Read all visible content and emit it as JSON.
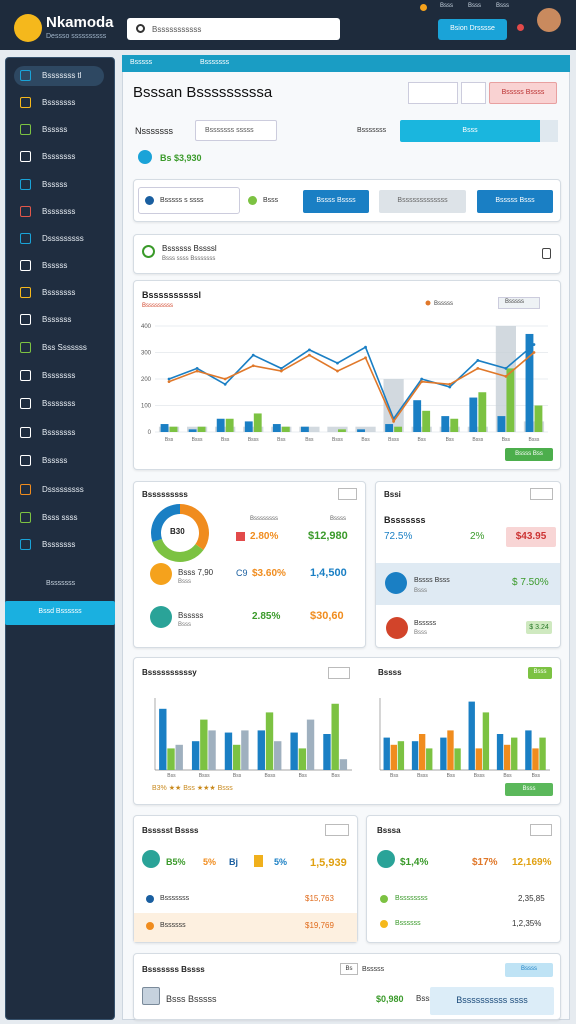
{
  "header": {
    "logo": "Nkamoda",
    "tagline": "Dessso ssssssssss",
    "search": "Bsssssssssss",
    "links": [
      "Bsss",
      "Bsss",
      "Bsss"
    ],
    "button": "Bsion Drsssse"
  },
  "sidebar": {
    "items": [
      "Bsssssss tl",
      "Bsssssss",
      "Bsssss",
      "Bsssssss",
      "Bsssss",
      "Bsssssss",
      "Dsssssssss",
      "Bsssss",
      "Bsssssss",
      "Bssssss",
      "Bss Sssssss",
      "Bsssssss",
      "Bsssssss",
      "Bsssssss",
      "Bsssss",
      "Dsssssssss",
      "Bsss ssss",
      "Bsssssss"
    ],
    "footer_label": "Bsssssss",
    "footer_button": "Bssd Bssssss"
  },
  "breadcrumb": [
    "Bsssss",
    "Bsssssss"
  ],
  "title": "Bsssan Bsssssssssa",
  "title_action": "Bsssss Bssss",
  "filter": {
    "label": "Nsssssss",
    "input": "Bsssssss sssss",
    "label2": "Bsssssss",
    "select": "Bsss"
  },
  "stat": "Bs $3,930",
  "toolbar": {
    "field": "Bsssss s ssss",
    "toggle": "Bsss",
    "buttons": [
      "Bssss Bssss",
      "Bsssssssssssss",
      "Bsssss Bsss"
    ]
  },
  "notice": {
    "title": "Bssssss Bssssl",
    "text": "Bsss ssss Bsssssss"
  },
  "main_chart": {
    "type": "bar",
    "title": "Bssssssssssl",
    "subtitle": "Bsssssssss",
    "filter": "Bsssss",
    "badge": "Bssss Bss",
    "categories": [
      "Bss",
      "Bsss",
      "Bss",
      "Bsss",
      "Bss",
      "Bss",
      "Bsss",
      "Bss",
      "Bsss",
      "Bss",
      "Bss",
      "Bsss",
      "Bss",
      "Bsss"
    ],
    "ylim": [
      0,
      400
    ],
    "yticks": [
      0,
      100,
      200,
      300,
      400
    ],
    "grid": true,
    "series": [
      {
        "kind": "backdrop",
        "color": "#c7cfd7",
        "values": [
          20,
          20,
          20,
          20,
          20,
          20,
          20,
          20,
          200,
          20,
          20,
          20,
          400,
          40
        ]
      },
      {
        "kind": "bar",
        "color": "#1a7fc4",
        "values": [
          30,
          10,
          50,
          40,
          30,
          20,
          0,
          10,
          30,
          120,
          60,
          130,
          60,
          370
        ]
      },
      {
        "kind": "bar",
        "color": "#7cc242",
        "values": [
          20,
          20,
          50,
          70,
          20,
          0,
          10,
          0,
          20,
          80,
          50,
          150,
          240,
          100
        ]
      },
      {
        "kind": "line",
        "color": "#1a7fc4",
        "values": [
          200,
          240,
          180,
          290,
          240,
          310,
          260,
          320,
          50,
          200,
          170,
          270,
          240,
          330
        ]
      },
      {
        "kind": "line",
        "name": "Bsssss",
        "color": "#e0782a",
        "values": [
          190,
          230,
          200,
          250,
          230,
          290,
          230,
          280,
          40,
          190,
          180,
          240,
          210,
          300
        ]
      }
    ]
  },
  "donut_card": {
    "title": "Bsssssssss",
    "center": "B30",
    "columns": [
      "Bssssssss",
      "Bssss"
    ],
    "segments": [
      {
        "color": "#f08c1e",
        "value": 35
      },
      {
        "color": "#7cc242",
        "value": 35
      },
      {
        "color": "#1a7fc4",
        "value": 30
      }
    ],
    "donut_row": {
      "change": "2.80%",
      "value": "$12,980"
    },
    "rows": [
      {
        "label": "Bsss 7,90",
        "sub": "Bsss",
        "code": "C9",
        "change": "$3.60%",
        "value": "1,4,500"
      },
      {
        "label": "Bsssss",
        "sub": "Bsss",
        "change": "2.85%",
        "value": "$30,60"
      }
    ]
  },
  "kpi_card": {
    "title": "Bssi",
    "label": "Bsssssss",
    "rate": "72.5%",
    "delta": "2%",
    "value": "$43.95",
    "rows": [
      {
        "label": "Bssss Bsss",
        "sub": "Bsss",
        "value": "$ 7.50%"
      },
      {
        "label": "Bsssss",
        "sub": "Bsss",
        "value": "$ 3.24"
      }
    ]
  },
  "bar_chart_left": {
    "type": "bar",
    "title": "Bssssssssssy",
    "footer": "B3% ★★ Bss ★★★ Bsss",
    "categories": [
      "Bss",
      "Bsss",
      "Bss",
      "Bsss",
      "Bss",
      "Bss"
    ],
    "ylim": [
      0,
      100
    ],
    "series": [
      {
        "color": "#1a7fc4",
        "values": [
          85,
          40,
          52,
          55,
          52,
          50
        ]
      },
      {
        "color": "#7cc242",
        "values": [
          30,
          70,
          35,
          80,
          30,
          92
        ]
      },
      {
        "color": "#9fb0bf",
        "values": [
          35,
          55,
          55,
          40,
          70,
          15
        ]
      }
    ]
  },
  "bar_chart_right": {
    "type": "bar",
    "title": "Bssss",
    "badge": "Bsss",
    "footer": "Bsss",
    "categories": [
      "Bss",
      "Bsss",
      "Bss",
      "Bsss",
      "Bss",
      "Bss"
    ],
    "ylim": [
      0,
      100
    ],
    "series": [
      {
        "color": "#1a7fc4",
        "values": [
          45,
          40,
          45,
          95,
          50,
          55
        ]
      },
      {
        "color": "#f08c1e",
        "values": [
          35,
          50,
          55,
          30,
          35,
          30
        ]
      },
      {
        "color": "#7cc242",
        "values": [
          40,
          30,
          30,
          80,
          45,
          45
        ]
      }
    ]
  },
  "summary_left": {
    "title": "Bssssst Bssss",
    "stats": [
      "B5%",
      "5%",
      "Bj",
      "5%",
      "1,5,939"
    ],
    "rows": [
      {
        "label": "Bsssssss",
        "value": "$15,763"
      },
      {
        "label": "Bssssss",
        "value": "$19,769"
      }
    ]
  },
  "summary_right": {
    "title": "Bsssa",
    "stats": [
      "$1,4%",
      "$17%",
      "12,169%"
    ],
    "rows": [
      {
        "label": "Bssssssss",
        "value": "2,35,85"
      },
      {
        "label": "Bssssss",
        "value": "1,2,35%"
      }
    ]
  },
  "footer_card": {
    "title": "Bsssssss Bssss",
    "chip": "Bs",
    "label": "Bsssss",
    "badge": "Bssss",
    "item": "Bsss Bsssss",
    "amount": "$0,980",
    "unit": "Bsss",
    "note": "Bssssssssss ssss"
  }
}
